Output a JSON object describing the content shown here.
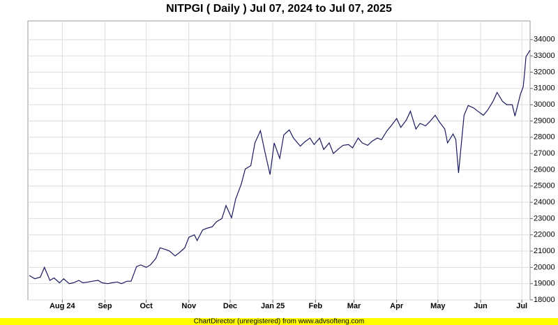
{
  "chart_data": {
    "type": "line",
    "title": "NITPGI ( Daily ) Jul 07, 2024 to Jul 07, 2025",
    "footer": "ChartDirector (unregistered) from www.advsofteng.com",
    "color": "#1a1a5e",
    "grid": true,
    "xlim": [
      "2024-07-07",
      "2025-07-07"
    ],
    "xticks": [
      {
        "value": "2024-08-01",
        "label": "Aug 24"
      },
      {
        "value": "2024-09-01",
        "label": "Sep"
      },
      {
        "value": "2024-10-01",
        "label": "Oct"
      },
      {
        "value": "2024-11-01",
        "label": "Nov"
      },
      {
        "value": "2024-12-01",
        "label": "Dec"
      },
      {
        "value": "2025-01-01",
        "label": "Jan 25"
      },
      {
        "value": "2025-02-01",
        "label": "Feb"
      },
      {
        "value": "2025-03-01",
        "label": "Mar"
      },
      {
        "value": "2025-04-01",
        "label": "Apr"
      },
      {
        "value": "2025-05-01",
        "label": "May"
      },
      {
        "value": "2025-06-01",
        "label": "Jun"
      },
      {
        "value": "2025-07-01",
        "label": "Jul"
      }
    ],
    "ylim": [
      18000,
      35150
    ],
    "yticks": [
      18000,
      19000,
      20000,
      21000,
      22000,
      23000,
      24000,
      25000,
      26000,
      27000,
      28000,
      29000,
      30000,
      31000,
      32000,
      33000,
      34000
    ],
    "x": [
      "2024-07-08",
      "2024-07-12",
      "2024-07-16",
      "2024-07-19",
      "2024-07-23",
      "2024-07-26",
      "2024-07-30",
      "2024-08-02",
      "2024-08-06",
      "2024-08-09",
      "2024-08-13",
      "2024-08-16",
      "2024-08-20",
      "2024-08-23",
      "2024-08-27",
      "2024-08-30",
      "2024-09-03",
      "2024-09-06",
      "2024-09-10",
      "2024-09-13",
      "2024-09-17",
      "2024-09-20",
      "2024-09-24",
      "2024-09-27",
      "2024-10-01",
      "2024-10-04",
      "2024-10-08",
      "2024-10-11",
      "2024-10-15",
      "2024-10-18",
      "2024-10-22",
      "2024-10-25",
      "2024-10-29",
      "2024-11-01",
      "2024-11-05",
      "2024-11-07",
      "2024-11-11",
      "2024-11-14",
      "2024-11-18",
      "2024-11-21",
      "2024-11-25",
      "2024-11-28",
      "2024-12-02",
      "2024-12-05",
      "2024-12-09",
      "2024-12-12",
      "2024-12-16",
      "2024-12-19",
      "2024-12-23",
      "2024-12-26",
      "2024-12-30",
      "2025-01-02",
      "2025-01-06",
      "2025-01-09",
      "2025-01-13",
      "2025-01-16",
      "2025-01-21",
      "2025-01-24",
      "2025-01-28",
      "2025-01-31",
      "2025-02-04",
      "2025-02-07",
      "2025-02-11",
      "2025-02-14",
      "2025-02-18",
      "2025-02-21",
      "2025-02-25",
      "2025-02-28",
      "2025-03-04",
      "2025-03-07",
      "2025-03-11",
      "2025-03-14",
      "2025-03-18",
      "2025-03-21",
      "2025-03-25",
      "2025-03-28",
      "2025-04-01",
      "2025-04-04",
      "2025-04-08",
      "2025-04-11",
      "2025-04-15",
      "2025-04-18",
      "2025-04-22",
      "2025-04-25",
      "2025-04-29",
      "2025-05-02",
      "2025-05-06",
      "2025-05-08",
      "2025-05-12",
      "2025-05-14",
      "2025-05-16",
      "2025-05-20",
      "2025-05-23",
      "2025-05-27",
      "2025-05-30",
      "2025-06-03",
      "2025-06-06",
      "2025-06-10",
      "2025-06-13",
      "2025-06-17",
      "2025-06-20",
      "2025-06-24",
      "2025-06-26",
      "2025-06-30",
      "2025-07-02",
      "2025-07-03",
      "2025-07-04",
      "2025-07-07"
    ],
    "values": [
      19500,
      19300,
      19400,
      20000,
      19200,
      19350,
      19050,
      19300,
      19000,
      19050,
      19200,
      19050,
      19100,
      19150,
      19200,
      19050,
      19000,
      19050,
      19100,
      19000,
      19150,
      19150,
      20050,
      20150,
      20000,
      20150,
      20550,
      21200,
      21100,
      21000,
      20700,
      20900,
      21200,
      21850,
      22000,
      21650,
      22300,
      22400,
      22500,
      22800,
      23000,
      23800,
      23050,
      24200,
      25100,
      26050,
      26250,
      27650,
      28400,
      27200,
      25700,
      27650,
      26700,
      28150,
      28450,
      27950,
      27450,
      27700,
      27950,
      27550,
      27950,
      27250,
      27650,
      27000,
      27300,
      27500,
      27550,
      27350,
      27950,
      27650,
      27500,
      27750,
      27950,
      27850,
      28400,
      28700,
      29150,
      28600,
      29050,
      29600,
      28500,
      28850,
      28700,
      28950,
      29350,
      28950,
      28500,
      27650,
      28200,
      27850,
      25800,
      29350,
      29950,
      29800,
      29600,
      29350,
      29650,
      30200,
      30750,
      30200,
      30000,
      30000,
      29300,
      30650,
      31100,
      31950,
      32950,
      33350
    ]
  }
}
